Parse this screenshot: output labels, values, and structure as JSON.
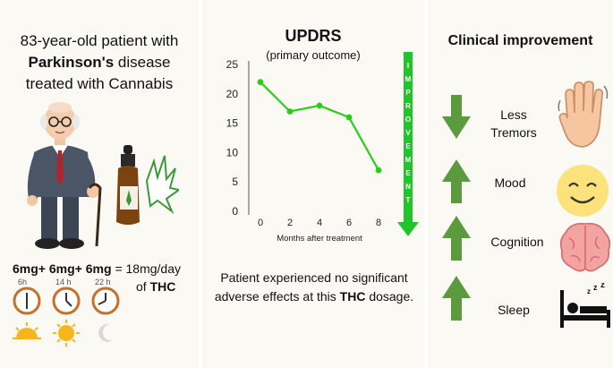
{
  "left_panel": {
    "title_part1": "83-year-old patient with ",
    "title_bold": "Parkinson's",
    "title_part2": " disease treated with Cannabis",
    "dose_terms": [
      "6mg",
      "+",
      "6mg",
      "+",
      "6mg"
    ],
    "dose_equals": "= 18mg/day",
    "dose_of": "of ",
    "dose_drug": "THC",
    "times": [
      "6h",
      "14 h",
      "22 h"
    ]
  },
  "middle_panel": {
    "title": "UPDRS",
    "subtitle": "(primary outcome)",
    "arrow_label": "IMPROVEMENT",
    "note_part1": "Patient experienced no significant adverse effects at this ",
    "note_bold": "THC",
    "note_part2": " dosage."
  },
  "chart_data": {
    "type": "line",
    "x": [
      0,
      2,
      4,
      6,
      8
    ],
    "values": [
      22,
      17,
      18,
      16,
      7
    ],
    "xticks": [
      "0",
      "2",
      "4",
      "6",
      "8"
    ],
    "yticks": [
      "0",
      "5",
      "10",
      "15",
      "20",
      "25"
    ],
    "xlabel": "Months after treatment",
    "ylim": [
      0,
      25
    ],
    "xlim": [
      0,
      8
    ],
    "color": "#2ecc1a"
  },
  "right_panel": {
    "title": "Clinical improvement",
    "items": [
      {
        "label": "Less Tremors",
        "direction": "down",
        "icon": "hand-icon"
      },
      {
        "label": "Mood",
        "direction": "up",
        "icon": "smiley-icon"
      },
      {
        "label": "Cognition",
        "direction": "up",
        "icon": "brain-icon"
      },
      {
        "label": "Sleep",
        "direction": "up",
        "icon": "sleeping-person-icon"
      }
    ],
    "arrow_color": "#5c9a3e"
  }
}
